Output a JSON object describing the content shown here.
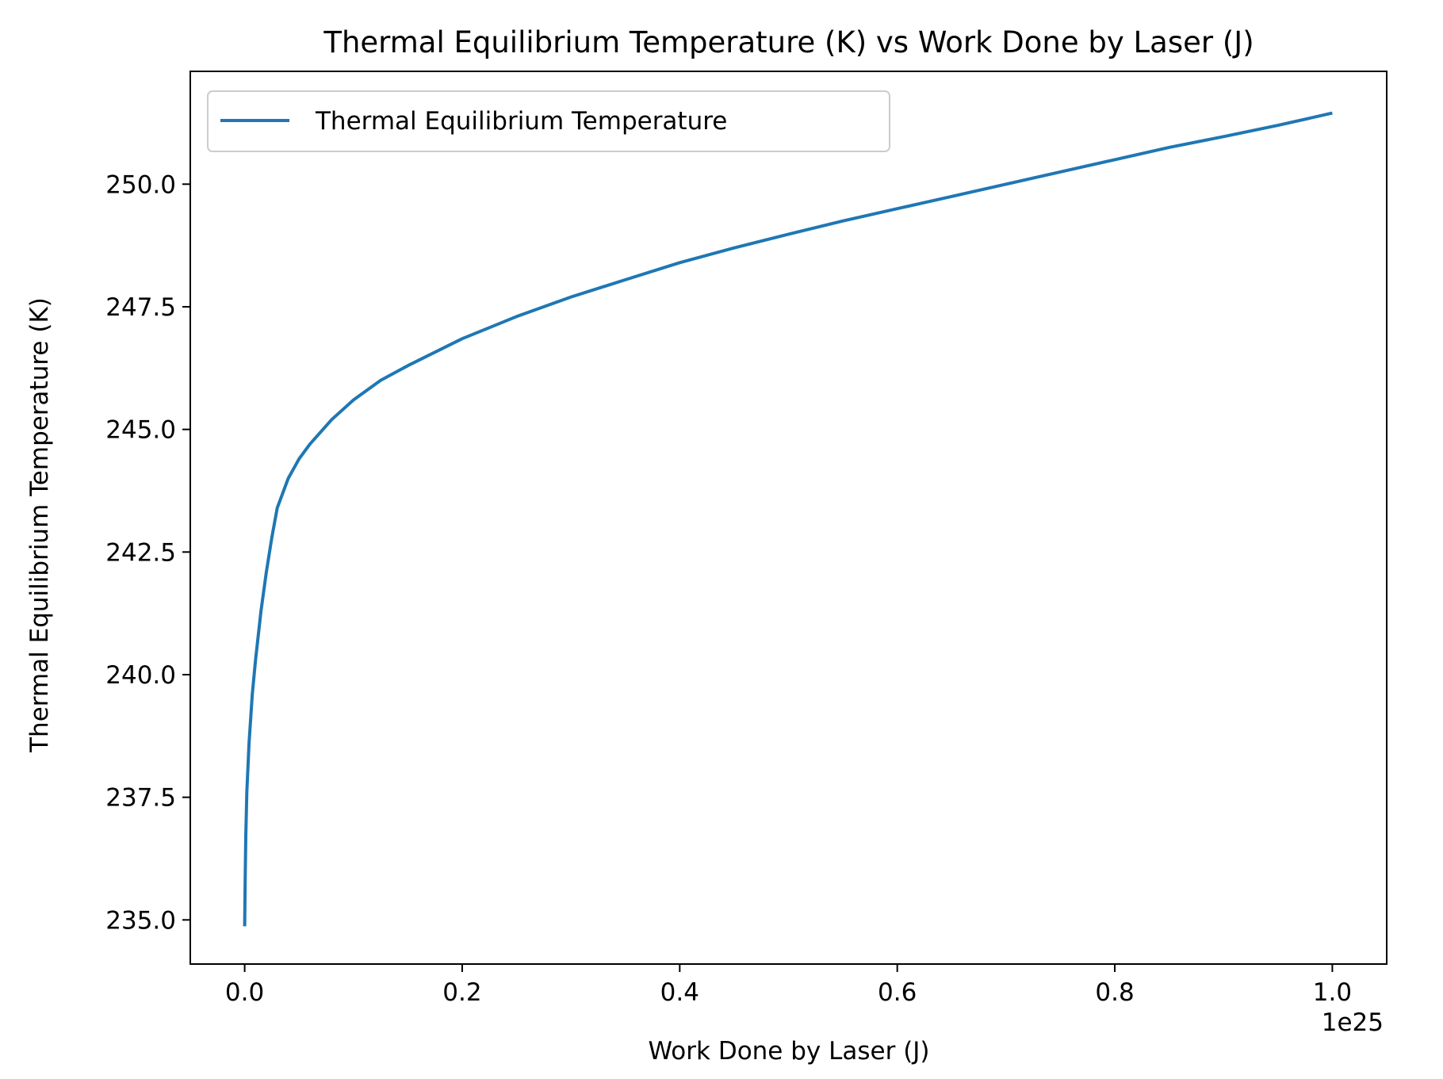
{
  "chart_data": {
    "type": "line",
    "title": "Thermal Equilibrium Temperature (K) vs Work Done by Laser (J)",
    "xlabel": "Work Done by Laser (J)",
    "ylabel": "Thermal Equilibrium Temperature (K)",
    "x_offset_text": "1e25",
    "xlim": [
      -0.05,
      1.05
    ],
    "ylim": [
      234.1,
      252.3
    ],
    "x_scale_exponent": 25,
    "xticks": [
      0.0,
      0.2,
      0.4,
      0.6,
      0.8,
      1.0
    ],
    "xtick_labels": [
      "0.0",
      "0.2",
      "0.4",
      "0.6",
      "0.8",
      "1.0"
    ],
    "yticks": [
      235.0,
      237.5,
      240.0,
      242.5,
      245.0,
      247.5,
      250.0
    ],
    "ytick_labels": [
      "235.0",
      "237.5",
      "240.0",
      "242.5",
      "245.0",
      "247.5",
      "250.0"
    ],
    "grid": false,
    "legend_position": "top-left",
    "series": [
      {
        "name": "Thermal Equilibrium Temperature",
        "color": "#1f77b4",
        "x": [
          0.0,
          0.0005,
          0.001,
          0.002,
          0.004,
          0.007,
          0.01,
          0.015,
          0.02,
          0.025,
          0.03,
          0.035,
          0.04,
          0.05,
          0.06,
          0.08,
          0.1,
          0.125,
          0.15,
          0.2,
          0.25,
          0.3,
          0.35,
          0.4,
          0.45,
          0.5,
          0.55,
          0.6,
          0.65,
          0.7,
          0.75,
          0.8,
          0.85,
          0.9,
          0.95,
          1.0
        ],
        "values": [
          234.87,
          235.9,
          236.7,
          237.6,
          238.6,
          239.6,
          240.3,
          241.3,
          242.1,
          242.8,
          243.4,
          243.7,
          244.0,
          244.4,
          244.7,
          245.2,
          245.6,
          246.0,
          246.3,
          246.85,
          247.3,
          247.7,
          248.05,
          248.4,
          248.7,
          248.98,
          249.25,
          249.5,
          249.75,
          250.0,
          250.25,
          250.5,
          250.75,
          250.97,
          251.2,
          251.45
        ]
      }
    ]
  }
}
